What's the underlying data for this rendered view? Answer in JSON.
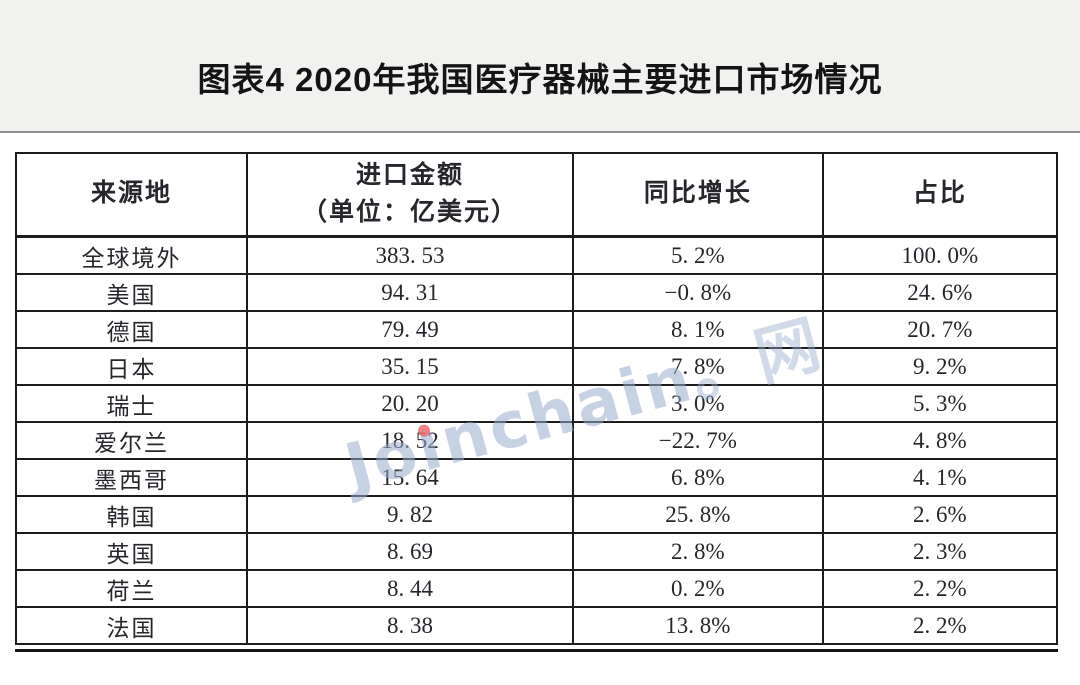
{
  "page": {
    "title": "图表4 2020年我国医疗器械主要进口市场情况"
  },
  "watermark": {
    "full_text": "Joinchain。网",
    "prefix": "Jo",
    "dotless_i": "ı",
    "suffix": "nchain",
    "tail": "。网",
    "color": "#97abce",
    "dot_color": "#eb6e6e"
  },
  "table": {
    "headers": {
      "source": "来源地",
      "amount_line1": "进口金额",
      "amount_line2": "（单位：亿美元）",
      "yoy": "同比增长",
      "share": "占比"
    },
    "rows": [
      {
        "source": "全球境外",
        "amount": "383. 53",
        "yoy": "5. 2%",
        "share": "100. 0%"
      },
      {
        "source": "美国",
        "amount": "94. 31",
        "yoy": "−0. 8%",
        "share": "24. 6%"
      },
      {
        "source": "德国",
        "amount": "79. 49",
        "yoy": "8. 1%",
        "share": "20. 7%"
      },
      {
        "source": "日本",
        "amount": "35. 15",
        "yoy": "7. 8%",
        "share": "9. 2%"
      },
      {
        "source": "瑞士",
        "amount": "20. 20",
        "yoy": "3. 0%",
        "share": "5. 3%"
      },
      {
        "source": "爱尔兰",
        "amount": "18. 52",
        "yoy": "−22. 7%",
        "share": "4. 8%"
      },
      {
        "source": "墨西哥",
        "amount": "15. 64",
        "yoy": "6. 8%",
        "share": "4. 1%"
      },
      {
        "source": "韩国",
        "amount": "9. 82",
        "yoy": "25. 8%",
        "share": "2. 6%"
      },
      {
        "source": "英国",
        "amount": "8. 69",
        "yoy": "2. 8%",
        "share": "2. 3%"
      },
      {
        "source": "荷兰",
        "amount": "8. 44",
        "yoy": "0. 2%",
        "share": "2. 2%"
      },
      {
        "source": "法国",
        "amount": "8. 38",
        "yoy": "13. 8%",
        "share": "2. 2%"
      }
    ]
  },
  "chart_data": {
    "type": "table",
    "title": "图表4 2020年我国医疗器械主要进口市场情况",
    "columns": [
      "来源地",
      "进口金额（单位：亿美元）",
      "同比增长",
      "占比"
    ],
    "rows": [
      {
        "来源地": "全球境外",
        "进口金额_亿美元": 383.53,
        "同比增长_pct": 5.2,
        "占比_pct": 100.0
      },
      {
        "来源地": "美国",
        "进口金额_亿美元": 94.31,
        "同比增长_pct": -0.8,
        "占比_pct": 24.6
      },
      {
        "来源地": "德国",
        "进口金额_亿美元": 79.49,
        "同比增长_pct": 8.1,
        "占比_pct": 20.7
      },
      {
        "来源地": "日本",
        "进口金额_亿美元": 35.15,
        "同比增长_pct": 7.8,
        "占比_pct": 9.2
      },
      {
        "来源地": "瑞士",
        "进口金额_亿美元": 20.2,
        "同比增长_pct": 3.0,
        "占比_pct": 5.3
      },
      {
        "来源地": "爱尔兰",
        "进口金额_亿美元": 18.52,
        "同比增长_pct": -22.7,
        "占比_pct": 4.8
      },
      {
        "来源地": "墨西哥",
        "进口金额_亿美元": 15.64,
        "同比增长_pct": 6.8,
        "占比_pct": 4.1
      },
      {
        "来源地": "韩国",
        "进口金额_亿美元": 9.82,
        "同比增长_pct": 25.8,
        "占比_pct": 2.6
      },
      {
        "来源地": "英国",
        "进口金额_亿美元": 8.69,
        "同比增长_pct": 2.8,
        "占比_pct": 2.3
      },
      {
        "来源地": "荷兰",
        "进口金额_亿美元": 8.44,
        "同比增长_pct": 0.2,
        "占比_pct": 2.2
      },
      {
        "来源地": "法国",
        "进口金额_亿美元": 8.38,
        "同比增长_pct": 13.8,
        "占比_pct": 2.2
      }
    ]
  },
  "colors": {
    "band_bg": "#f1f1ef",
    "divider": "#8f8f8f",
    "table_border": "#1c1c1c",
    "text": "#26262c"
  }
}
